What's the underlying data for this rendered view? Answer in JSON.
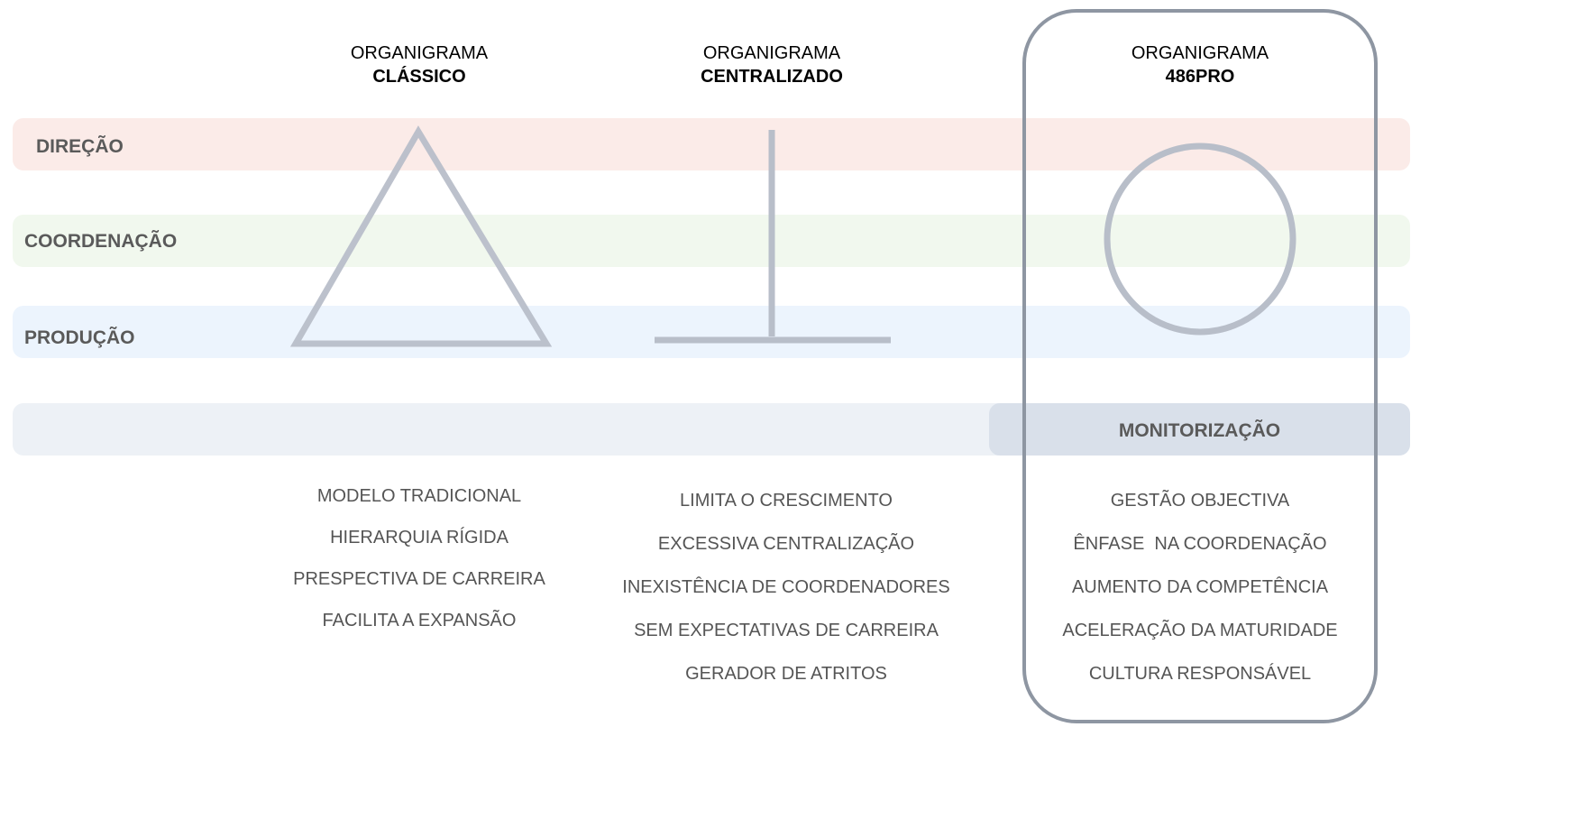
{
  "levels": {
    "direcao": "DIREÇÃO",
    "coordenacao": "COORDENAÇÃO",
    "producao": "PRODUÇÃO",
    "monitorizacao": "MONITORIZAÇÃO"
  },
  "colors": {
    "direcao_band": "#fbebe8",
    "coordenacao_band": "#f1f8ee",
    "producao_band": "#ecf4fd",
    "base_band": "#edf1f6",
    "monitorizacao_band": "#d9e0ea",
    "shape_stroke": "#b8bec9",
    "panel_border": "#8e96a2"
  },
  "columns": [
    {
      "title": "ORGANIGRAMA",
      "subtitle": "CLÁSSICO",
      "shape": "triangle",
      "items": [
        "MODELO TRADICIONAL",
        "HIERARQUIA RÍGIDA",
        "PRESPECTIVA DE CARREIRA",
        "FACILITA A EXPANSÃO"
      ]
    },
    {
      "title": "ORGANIGRAMA",
      "subtitle": "CENTRALIZADO",
      "shape": "inverted-t",
      "items": [
        "LIMITA O CRESCIMENTO",
        "EXCESSIVA CENTRALIZAÇÃO",
        "INEXISTÊNCIA DE COORDENADORES",
        "SEM EXPECTATIVAS DE CARREIRA",
        "GERADOR DE ATRITOS"
      ]
    },
    {
      "title": "ORGANIGRAMA",
      "subtitle": "486PRO",
      "shape": "circle",
      "highlighted": true,
      "items": [
        "GESTÃO OBJECTIVA",
        "ÊNFASE  NA COORDENAÇÃO",
        "AUMENTO DA COMPETÊNCIA",
        "ACELERAÇÃO DA MATURIDADE",
        "CULTURA RESPONSÁVEL"
      ]
    }
  ]
}
